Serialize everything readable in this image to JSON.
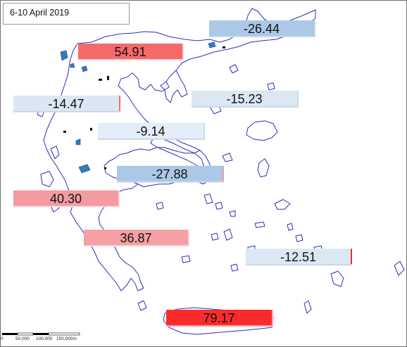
{
  "title": "6-10 April 2019",
  "colors": {
    "coast": "#2d2dbb",
    "lake": "#2f7fbf",
    "strong_positive": "#fb2b2b",
    "positive": "#f46a6a",
    "mild_positive": "#f39ba0",
    "strong_negative": "#abc9e6",
    "negative": "#dbe8f4"
  },
  "regions": [
    {
      "value": "-26.44",
      "color": "#abc9e6"
    },
    {
      "value": "54.91",
      "color": "#f46a6a"
    },
    {
      "value": "-14.47",
      "color": "#dbe8f4"
    },
    {
      "value": "-15.23",
      "color": "#dbe8f4"
    },
    {
      "value": "-9.14",
      "color": "#e4eef8"
    },
    {
      "value": "-27.88",
      "color": "#abc9e6"
    },
    {
      "value": "40.30",
      "color": "#f39ba0"
    },
    {
      "value": "36.87",
      "color": "#f4a0a4"
    },
    {
      "value": "-12.51",
      "color": "#dbe8f4"
    },
    {
      "value": "79.17",
      "color": "#fb2b2b"
    }
  ],
  "scale_bar": {
    "labels": [
      "0",
      "50,000",
      "100,000",
      "150,000m"
    ]
  }
}
